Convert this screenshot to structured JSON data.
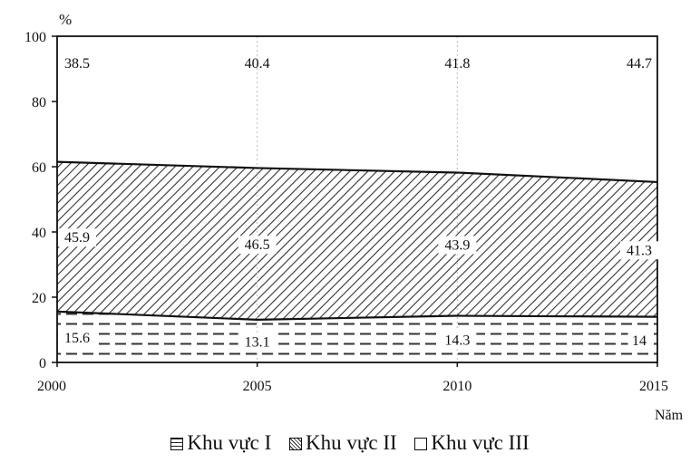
{
  "chart_data": {
    "type": "area",
    "stacked": true,
    "title": "",
    "ylabel": "%",
    "xlabel": "Năm",
    "x": [
      2000,
      2005,
      2010,
      2015
    ],
    "ylim": [
      0,
      100
    ],
    "yticks": [
      0,
      20,
      40,
      60,
      80,
      100
    ],
    "grid": false,
    "series": [
      {
        "name": "Khu vực I",
        "values": [
          15.6,
          13.1,
          14.3,
          14
        ],
        "labels": [
          "15.6",
          "13.1",
          "14.3",
          "14"
        ],
        "pattern": "dashed"
      },
      {
        "name": "Khu vực II",
        "values": [
          45.9,
          46.5,
          43.9,
          41.3
        ],
        "labels": [
          "45.9",
          "46.5",
          "43.9",
          "41.3"
        ],
        "pattern": "diagonal-hatch"
      },
      {
        "name": "Khu vực III",
        "values": [
          38.5,
          40.4,
          41.8,
          44.7
        ],
        "labels": [
          "38.5",
          "40.4",
          "41.8",
          "44.7"
        ],
        "pattern": "blank"
      }
    ],
    "legend_position": "bottom"
  }
}
